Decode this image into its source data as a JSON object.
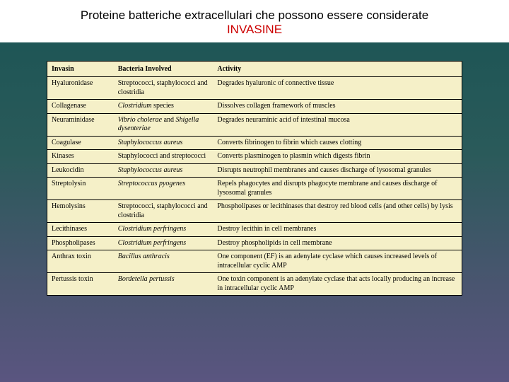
{
  "title": {
    "line1": "Proteine  batteriche extracellulari che possono essere considerate",
    "line2": "INVASINE"
  },
  "colors": {
    "bg_gradient_top": "#1a5454",
    "bg_gradient_bottom": "#5a5580",
    "title_bg": "#ffffff",
    "title_red": "#cc0000",
    "table_bg": "#f5f0c8",
    "border": "#000000"
  },
  "table": {
    "columns": [
      "Invasin",
      "Bacteria Involved",
      "Activity"
    ],
    "col_widths_pct": [
      16,
      24,
      60
    ],
    "font_size_pt": 10,
    "rows": [
      {
        "invasin": "Hyaluronidase",
        "bacteria": "Streptococci, staphylococci and clostridia",
        "bacteria_italic": false,
        "activity": "Degrades hyaluronic of connective tissue"
      },
      {
        "invasin": "Collagenase",
        "bacteria": "Clostridium",
        "bacteria_suffix": " species",
        "bacteria_italic": true,
        "activity": "Dissolves collagen framework of muscles"
      },
      {
        "invasin": "Neuraminidase",
        "bacteria": "Vibrio cholerae",
        "bacteria_suffix": " and ",
        "bacteria2": "Shigella dysenteriae",
        "bacteria_italic": true,
        "activity": "Degrades neuraminic acid of intestinal mucosa"
      },
      {
        "invasin": "Coagulase",
        "bacteria": "Staphylococcus aureus",
        "bacteria_italic": true,
        "activity": "Converts fibrinogen to fibrin which causes clotting"
      },
      {
        "invasin": "Kinases",
        "bacteria": "Staphylococci and streptococci",
        "bacteria_italic": false,
        "activity": "Converts plasminogen to plasmin which digests fibrin"
      },
      {
        "invasin": "Leukocidin",
        "bacteria": "Staphylococcus aureus",
        "bacteria_italic": true,
        "activity": "Disrupts neutrophil membranes and causes discharge of lysosomal granules"
      },
      {
        "invasin": "Streptolysin",
        "bacteria": "Streptococcus pyogenes",
        "bacteria_italic": true,
        "activity": "Repels phagocytes and disrupts phagocyte membrane and causes discharge of lysosomal granules"
      },
      {
        "invasin": "Hemolysins",
        "bacteria": "Streptococci, staphylococci and clostridia",
        "bacteria_italic": false,
        "activity": "Phospholipases or lecithinases that destroy red blood cells (and other cells) by lysis"
      },
      {
        "invasin": "Lecithinases",
        "bacteria": "Clostridium perfringens",
        "bacteria_italic": true,
        "activity": "Destroy lecithin in cell membranes"
      },
      {
        "invasin": "Phospholipases",
        "bacteria": "Clostridium perfringens",
        "bacteria_italic": true,
        "activity": "Destroy phospholipids in cell membrane"
      },
      {
        "invasin": "Anthrax toxin",
        "bacteria": "Bacillus anthracis",
        "bacteria_italic": true,
        "activity": "One component (EF) is an adenylate cyclase which causes increased levels of intracellular cyclic AMP"
      },
      {
        "invasin": "Pertussis toxin",
        "bacteria": "Bordetella pertussis",
        "bacteria_italic": true,
        "activity": "One toxin component is an adenylate cyclase that acts locally producing an increase in intracellular cyclic AMP"
      }
    ]
  }
}
